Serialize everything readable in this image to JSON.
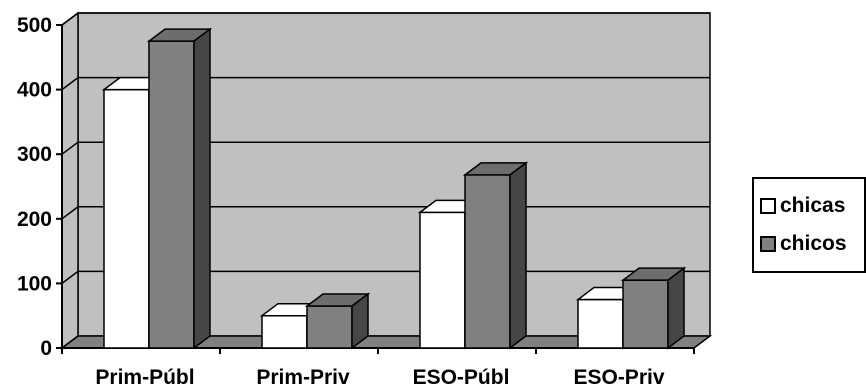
{
  "chart_data": {
    "type": "bar",
    "categories": [
      "Prim-Públ",
      "Prim-Priv",
      "ESO-Públ",
      "ESO-Priv"
    ],
    "series": [
      {
        "name": "chicas",
        "values": [
          400,
          50,
          210,
          75
        ],
        "color": "#ffffff"
      },
      {
        "name": "chicos",
        "values": [
          475,
          65,
          268,
          105
        ],
        "color": "#808080"
      }
    ],
    "yticks": [
      0,
      100,
      200,
      300,
      400,
      500
    ],
    "ylim": [
      0,
      500
    ],
    "grid": true,
    "legend": "right",
    "wall_color": "#c0c0c0",
    "floor_color": "#808080"
  }
}
